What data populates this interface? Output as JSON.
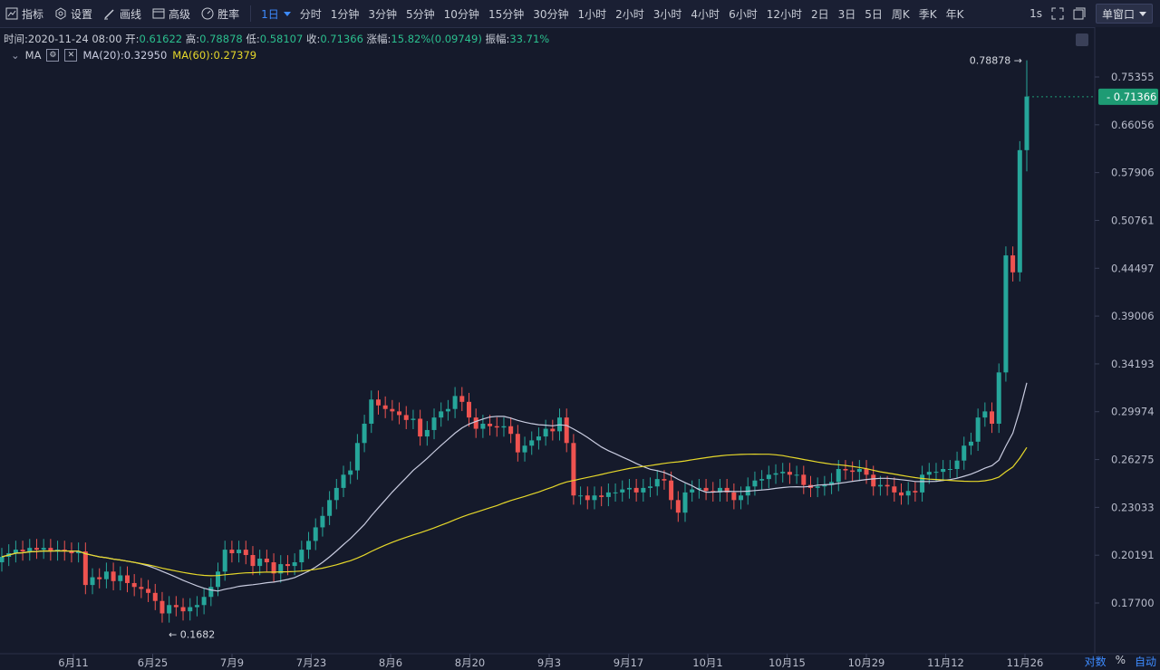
{
  "toolbar": {
    "tools": [
      {
        "label": "指标",
        "icon": "indicator-icon"
      },
      {
        "label": "设置",
        "icon": "settings-icon"
      },
      {
        "label": "画线",
        "icon": "draw-line-icon"
      },
      {
        "label": "高级",
        "icon": "advanced-icon"
      },
      {
        "label": "胜率",
        "icon": "win-rate-icon"
      }
    ],
    "intervals": [
      "1日",
      "分时",
      "1分钟",
      "3分钟",
      "5分钟",
      "10分钟",
      "15分钟",
      "30分钟",
      "1小时",
      "2小时",
      "3小时",
      "4小时",
      "6小时",
      "12小时",
      "2日",
      "3日",
      "5日",
      "周K",
      "季K",
      "年K"
    ],
    "active_interval": "1日",
    "refresh": "1s",
    "window_mode": "单窗口"
  },
  "info": {
    "time_label": "时间:",
    "time": "2020-11-24 08:00",
    "open_label": "开:",
    "open": "0.61622",
    "high_label": "高:",
    "high": "0.78878",
    "low_label": "低:",
    "low": "0.58107",
    "close_label": "收:",
    "close": "0.71366",
    "change_label": "涨幅:",
    "change": "15.82%(0.09749)",
    "amplitude_label": "振幅:",
    "amplitude": "33.71%"
  },
  "indicator": {
    "name": "MA",
    "ma20_label": "MA(20):0.32950",
    "ma60_label": "MA(60):0.27379"
  },
  "axis_footer": {
    "log": "对数",
    "percent": "%",
    "auto": "自动"
  },
  "colors": {
    "up": "#26a69a",
    "down": "#ef5350",
    "ma20": "#c9cce0",
    "ma60": "#e6d82a",
    "price_tag": "#1e9b74",
    "accent": "#3d8bff"
  },
  "chart_data": {
    "type": "candlestick",
    "interval": "1日",
    "x_ticks": [
      "6月11",
      "6月25",
      "7月9",
      "7月23",
      "8月6",
      "8月20",
      "9月3",
      "9月17",
      "10月1",
      "10月15",
      "10月29",
      "11月12",
      "11月26"
    ],
    "y_ticks": [
      "0.75355",
      "0.66056",
      "0.57906",
      "0.50761",
      "0.44497",
      "0.39006",
      "0.34193",
      "0.29974",
      "0.26275",
      "0.23033",
      "0.20191",
      "0.17700"
    ],
    "y_scale": "log",
    "current_price": "0.71366",
    "max_marker": "0.78878",
    "min_marker": "0.1682",
    "series": [
      {
        "name": "MA(20)",
        "last": 0.3295
      },
      {
        "name": "MA(60)",
        "last": 0.27379
      }
    ],
    "close": [
      0.201,
      0.203,
      0.205,
      0.204,
      0.206,
      0.205,
      0.206,
      0.204,
      0.205,
      0.204,
      0.203,
      0.204,
      0.186,
      0.19,
      0.189,
      0.193,
      0.188,
      0.191,
      0.187,
      0.185,
      0.184,
      0.182,
      0.178,
      0.172,
      0.176,
      0.175,
      0.173,
      0.175,
      0.176,
      0.18,
      0.185,
      0.193,
      0.205,
      0.203,
      0.205,
      0.202,
      0.196,
      0.2,
      0.198,
      0.192,
      0.197,
      0.196,
      0.198,
      0.205,
      0.21,
      0.218,
      0.225,
      0.235,
      0.243,
      0.252,
      0.255,
      0.275,
      0.29,
      0.31,
      0.305,
      0.302,
      0.3,
      0.297,
      0.293,
      0.294,
      0.28,
      0.285,
      0.295,
      0.3,
      0.302,
      0.313,
      0.308,
      0.295,
      0.286,
      0.29,
      0.288,
      0.287,
      0.288,
      0.282,
      0.268,
      0.273,
      0.277,
      0.28,
      0.286,
      0.284,
      0.295,
      0.275,
      0.238,
      0.238,
      0.235,
      0.238,
      0.237,
      0.24,
      0.24,
      0.242,
      0.243,
      0.24,
      0.243,
      0.244,
      0.249,
      0.248,
      0.235,
      0.227,
      0.24,
      0.242,
      0.243,
      0.241,
      0.24,
      0.243,
      0.24,
      0.235,
      0.238,
      0.244,
      0.248,
      0.249,
      0.252,
      0.253,
      0.254,
      0.252,
      0.252,
      0.245,
      0.243,
      0.244,
      0.245,
      0.247,
      0.256,
      0.255,
      0.254,
      0.256,
      0.252,
      0.244,
      0.245,
      0.244,
      0.24,
      0.238,
      0.241,
      0.24,
      0.252,
      0.254,
      0.254,
      0.256,
      0.256,
      0.262,
      0.273,
      0.276,
      0.295,
      0.3,
      0.29,
      0.334,
      0.461,
      0.44,
      0.616,
      0.714
    ],
    "open": [
      0.198,
      0.201,
      0.203,
      0.205,
      0.204,
      0.206,
      0.205,
      0.206,
      0.204,
      0.205,
      0.204,
      0.203,
      0.204,
      0.186,
      0.19,
      0.189,
      0.193,
      0.188,
      0.191,
      0.187,
      0.185,
      0.184,
      0.182,
      0.178,
      0.172,
      0.176,
      0.175,
      0.173,
      0.175,
      0.176,
      0.18,
      0.185,
      0.193,
      0.205,
      0.203,
      0.205,
      0.202,
      0.196,
      0.2,
      0.198,
      0.192,
      0.197,
      0.196,
      0.198,
      0.205,
      0.21,
      0.218,
      0.225,
      0.235,
      0.243,
      0.252,
      0.255,
      0.275,
      0.29,
      0.31,
      0.305,
      0.302,
      0.3,
      0.297,
      0.293,
      0.294,
      0.28,
      0.285,
      0.295,
      0.3,
      0.302,
      0.313,
      0.308,
      0.295,
      0.286,
      0.29,
      0.288,
      0.287,
      0.288,
      0.282,
      0.268,
      0.273,
      0.277,
      0.28,
      0.286,
      0.284,
      0.295,
      0.275,
      0.238,
      0.238,
      0.235,
      0.238,
      0.237,
      0.24,
      0.24,
      0.242,
      0.243,
      0.24,
      0.243,
      0.244,
      0.249,
      0.248,
      0.235,
      0.227,
      0.24,
      0.242,
      0.243,
      0.241,
      0.24,
      0.243,
      0.24,
      0.235,
      0.238,
      0.244,
      0.248,
      0.249,
      0.252,
      0.253,
      0.254,
      0.252,
      0.252,
      0.245,
      0.243,
      0.244,
      0.245,
      0.247,
      0.256,
      0.255,
      0.254,
      0.256,
      0.252,
      0.244,
      0.245,
      0.244,
      0.24,
      0.238,
      0.241,
      0.24,
      0.252,
      0.254,
      0.254,
      0.256,
      0.256,
      0.262,
      0.273,
      0.276,
      0.295,
      0.3,
      0.29,
      0.334,
      0.461,
      0.44,
      0.616
    ]
  }
}
